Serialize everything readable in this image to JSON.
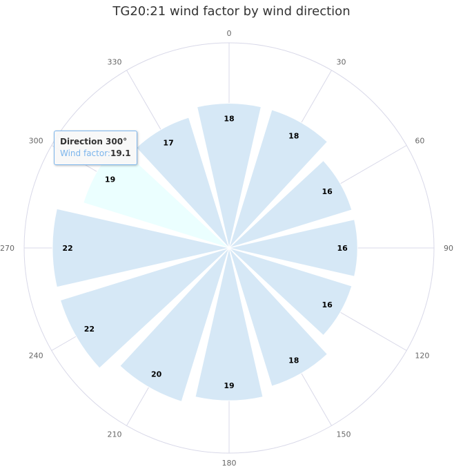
{
  "chart_data": {
    "type": "bar",
    "polar": true,
    "title": "TG20:21 wind factor by wind direction",
    "series": [
      {
        "name": "Wind factor",
        "directions": [
          0,
          30,
          60,
          90,
          120,
          150,
          180,
          210,
          240,
          270,
          300,
          330
        ],
        "values": [
          18,
          18,
          16,
          16,
          16,
          18,
          19,
          20,
          22,
          22,
          19,
          17
        ],
        "data_labels": [
          "18",
          "18",
          "16",
          "16",
          "16",
          "18",
          "19",
          "20",
          "22",
          "22",
          "19",
          "17"
        ]
      }
    ],
    "angular_ticks": [
      "0",
      "30",
      "60",
      "90",
      "120",
      "150",
      "180",
      "210",
      "240",
      "270",
      "300",
      "330"
    ],
    "radial_range": [
      0,
      22
    ],
    "highlighted_direction": 300,
    "colors": {
      "bar": "#d6e8f6",
      "bar_hover": "#ebffff",
      "grid": "#d8d8e8",
      "tooltip_border": "#7cb5ec"
    },
    "tooltip": {
      "title": "Direction 300°",
      "series_label": "Wind factor:",
      "value": "19.1"
    }
  }
}
